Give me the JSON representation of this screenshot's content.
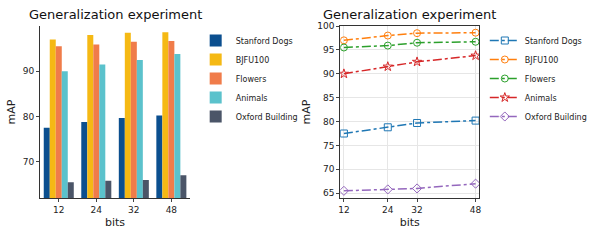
{
  "chart_data": [
    {
      "type": "bar",
      "title": "Generalization experiment",
      "xlabel": "bits",
      "ylabel": "mAP",
      "categories": [
        "12",
        "24",
        "32",
        "48"
      ],
      "ylim": [
        62,
        100
      ],
      "yticks": [
        70,
        80,
        90
      ],
      "grid": false,
      "legend": "upper right",
      "series": [
        {
          "name": "Stanford Dogs",
          "color": "#0b4f8f",
          "values": [
            77.5,
            78.8,
            79.7,
            80.2
          ]
        },
        {
          "name": "BJFU100",
          "color": "#f5b914",
          "values": [
            97.0,
            98.0,
            98.5,
            98.6
          ]
        },
        {
          "name": "Flowers",
          "color": "#f07c4a",
          "values": [
            95.5,
            95.9,
            96.5,
            96.7
          ]
        },
        {
          "name": "Animals",
          "color": "#5bc2cc",
          "values": [
            90.0,
            91.5,
            92.5,
            93.8
          ]
        },
        {
          "name": "Oxford Building",
          "color": "#4b5568",
          "values": [
            65.5,
            65.8,
            66.0,
            67.0
          ]
        }
      ]
    },
    {
      "type": "line",
      "title": "Generalization experiment",
      "xlabel": "bits",
      "ylabel": "mAP",
      "x": [
        12,
        24,
        32,
        48
      ],
      "xlim": [
        11,
        49
      ],
      "xticks": [
        12,
        24,
        32,
        48
      ],
      "ylim": [
        64,
        100
      ],
      "yticks": [
        65,
        70,
        75,
        80,
        85,
        90,
        95,
        100
      ],
      "grid": true,
      "legend": "lower left",
      "series": [
        {
          "name": "Stanford Dogs",
          "color": "#1f77b4",
          "marker": "square-open",
          "line_style": "dashdot",
          "values": [
            77.5,
            78.8,
            79.7,
            80.2
          ]
        },
        {
          "name": "BJFU100",
          "color": "#ff7f0e",
          "marker": "circle-open",
          "line_style": "dashdot",
          "values": [
            97.0,
            98.0,
            98.5,
            98.6
          ]
        },
        {
          "name": "Flowers",
          "color": "#2ca02c",
          "marker": "circle-open",
          "line_style": "dashdot",
          "values": [
            95.5,
            95.9,
            96.5,
            96.7
          ]
        },
        {
          "name": "Animals",
          "color": "#d62728",
          "marker": "star-open",
          "line_style": "dashdot",
          "values": [
            90.0,
            91.5,
            92.5,
            93.8
          ]
        },
        {
          "name": "Oxford Building",
          "color": "#9467bd",
          "marker": "diamond-open",
          "line_style": "dashdot",
          "values": [
            65.5,
            65.8,
            66.0,
            67.0
          ]
        }
      ]
    }
  ]
}
